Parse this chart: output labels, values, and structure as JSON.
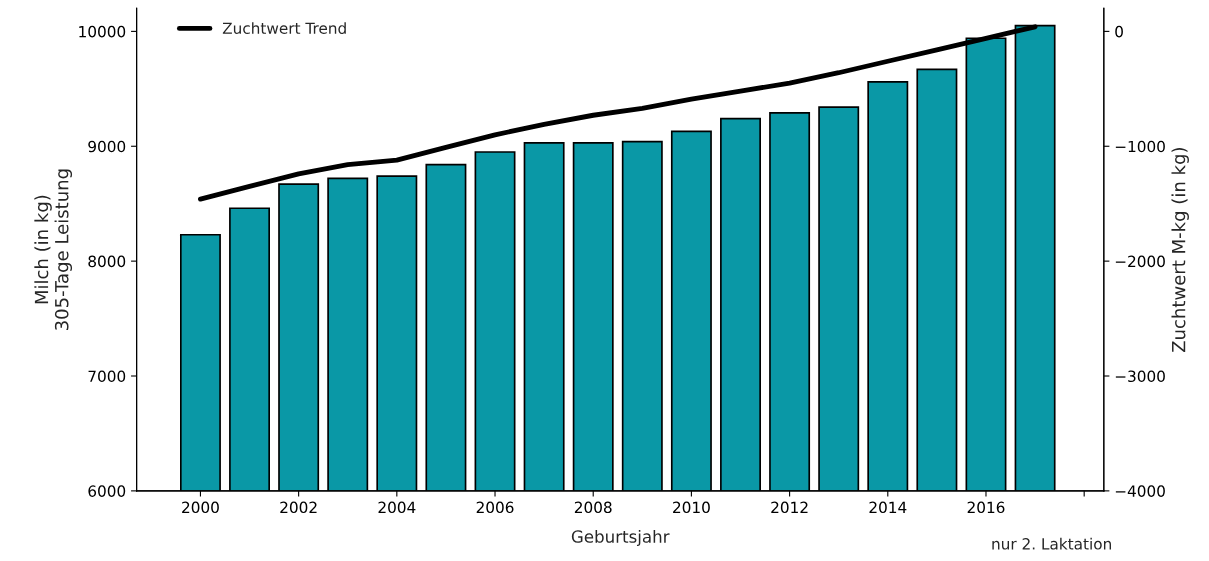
{
  "chart_data": {
    "type": "bar",
    "xlabel": "Geburtsjahr",
    "ylabel": "Milch (in kg)\n305-Tage Leistung",
    "y2label": "Zuchtwert M-kg (in kg)",
    "x": [
      2000,
      2001,
      2002,
      2003,
      2004,
      2005,
      2006,
      2007,
      2008,
      2009,
      2010,
      2011,
      2012,
      2013,
      2014,
      2015,
      2016,
      2017
    ],
    "series": [
      {
        "color": "#0a98a6",
        "values": [
          8230,
          8460,
          8670,
          8720,
          8740,
          8840,
          8950,
          9030,
          9030,
          9040,
          9130,
          9240,
          9290,
          9340,
          9560,
          9670,
          9940,
          10050
        ]
      },
      {
        "type": "line",
        "axis": "y2",
        "name": "Zuchtwert Trend",
        "color": "#000000",
        "values": [
          -1460,
          -1350,
          -1240,
          -1160,
          -1120,
          -1010,
          -900,
          -810,
          -730,
          -670,
          -590,
          -520,
          -450,
          -360,
          -260,
          -160,
          -60,
          40
        ]
      }
    ],
    "xlim": [
      1998.7,
      2018.4
    ],
    "xticks": [
      2000,
      2002,
      2004,
      2006,
      2008,
      2010,
      2012,
      2014,
      2016,
      {
        "value": 2018,
        "label": null
      }
    ],
    "ylim": [
      6000,
      10200
    ],
    "yticks": [
      6000,
      7000,
      8000,
      9000,
      10000
    ],
    "y2lim": [
      -4000,
      200
    ],
    "y2ticks": [
      -4000,
      -3000,
      -2000,
      -1000,
      0
    ],
    "legend": "top left",
    "grid": false,
    "annotations": [
      "nur 2. Laktation"
    ]
  }
}
